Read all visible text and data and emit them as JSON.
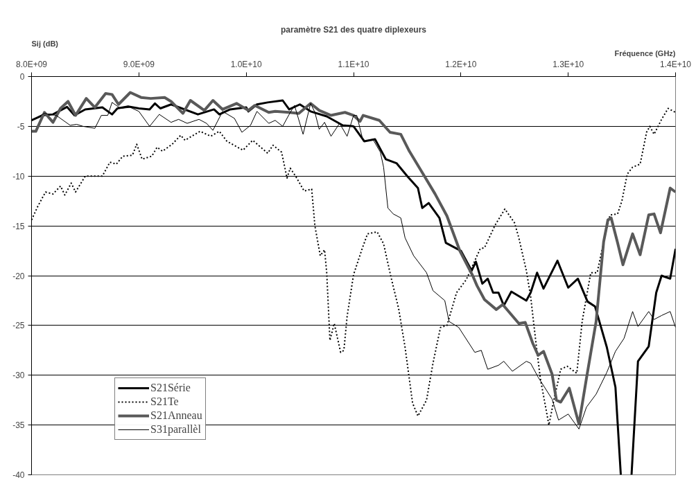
{
  "chart_data": {
    "type": "line",
    "title": "paramètre S21 des quatre diplexeurs",
    "xlabel": "Fréquence (GHz)",
    "ylabel": "Sij (dB)",
    "xlim": [
      8000000000.0,
      14000000000.0
    ],
    "ylim": [
      -40,
      0
    ],
    "xticks": [
      {
        "value": 8000000000.0,
        "label": "8.0E+09"
      },
      {
        "value": 9000000000.0,
        "label": "9.0E+09"
      },
      {
        "value": 10000000000.0,
        "label": "1.0E+10"
      },
      {
        "value": 11000000000.0,
        "label": "1.1E+10"
      },
      {
        "value": 12000000000.0,
        "label": "1.2E+10"
      },
      {
        "value": 13000000000.0,
        "label": "1.3E+10"
      },
      {
        "value": 14000000000.0,
        "label": "1.4E+10"
      }
    ],
    "yticks": [
      0,
      -5,
      -10,
      -15,
      -20,
      -25,
      -30,
      -35,
      -40
    ],
    "grid": "y",
    "legend": "bottom left",
    "marker": "none",
    "series": [
      {
        "name": "S21Série",
        "color": "#000000",
        "line_style": "solid",
        "x": [
          8000000000.0,
          8100000000.0,
          8200000000.0,
          8330000000.0,
          8400000000.0,
          8500000000.0,
          8660000000.0,
          8750000000.0,
          8800000000.0,
          8900000000.0,
          9000000000.0,
          9100000000.0,
          9150000000.0,
          9200000000.0,
          9300000000.0,
          9400000000.0,
          9550000000.0,
          9700000000.0,
          9750000000.0,
          9850000000.0,
          10000000000.0,
          10020000000.0,
          10100000000.0,
          10200000000.0,
          10340000000.0,
          10400000000.0,
          10500000000.0,
          10600000000.0,
          10750000000.0,
          10900000000.0,
          11000000000.0,
          11100000000.0,
          11200000000.0,
          11300000000.0,
          11400000000.0,
          11500000000.0,
          11600000000.0,
          11640000000.0,
          11700000000.0,
          11800000000.0,
          11860000000.0,
          12000000000.0,
          12100000000.0,
          12140000000.0,
          12200000000.0,
          12250000000.0,
          12300000000.0,
          12350000000.0,
          12400000000.0,
          12470000000.0,
          12610000000.0,
          12650000000.0,
          12710000000.0,
          12770000000.0,
          12900000000.0,
          13000000000.0,
          13090000000.0,
          13180000000.0,
          13250000000.0,
          13360000000.0,
          13440000000.0,
          13490000000.0,
          13550000000.0,
          13590000000.0,
          13650000000.0,
          13750000000.0,
          13820000000.0,
          13870000000.0,
          13950000000.0,
          14000000000.0
        ],
        "values": [
          -4.4,
          -3.9,
          -3.8,
          -3.05,
          -3.9,
          -3.3,
          -3.1,
          -3.8,
          -3.2,
          -3.0,
          -3.2,
          -3.3,
          -2.7,
          -3.2,
          -2.8,
          -3.2,
          -3.8,
          -3.3,
          -3.8,
          -3.3,
          -3.1,
          -3.5,
          -2.8,
          -2.6,
          -2.4,
          -3.3,
          -2.8,
          -3.5,
          -4.0,
          -4.9,
          -5.0,
          -6.5,
          -6.3,
          -8.3,
          -8.7,
          -10.0,
          -11.2,
          -13.2,
          -12.7,
          -14.2,
          -16.7,
          -17.5,
          -19.5,
          -18.6,
          -20.8,
          -20.3,
          -21.7,
          -21.7,
          -23.0,
          -21.6,
          -22.5,
          -21.7,
          -19.7,
          -21.3,
          -18.5,
          -21.2,
          -20.3,
          -22.6,
          -23.1,
          -27.2,
          -31.2,
          -40,
          null,
          -40,
          -28.6,
          -27.1,
          -21.7,
          -20.0,
          -20.3,
          -17.3
        ]
      },
      {
        "name": "S21Te",
        "color": "#000000",
        "line_style": "dotted",
        "x": [
          8000000000.0,
          8060000000.0,
          8130000000.0,
          8200000000.0,
          8270000000.0,
          8310000000.0,
          8370000000.0,
          8410000000.0,
          8500000000.0,
          8660000000.0,
          8730000000.0,
          8790000000.0,
          8850000000.0,
          8940000000.0,
          8980000000.0,
          9030000000.0,
          9120000000.0,
          9170000000.0,
          9220000000.0,
          9310000000.0,
          9390000000.0,
          9430000000.0,
          9570000000.0,
          9670000000.0,
          9750000000.0,
          9820000000.0,
          9970000000.0,
          10060000000.0,
          10200000000.0,
          10250000000.0,
          10330000000.0,
          10380000000.0,
          10410000000.0,
          10460000000.0,
          10540000000.0,
          10610000000.0,
          10640000000.0,
          10690000000.0,
          10730000000.0,
          10750000000.0,
          10780000000.0,
          10820000000.0,
          10880000000.0,
          10910000000.0,
          10940000000.0,
          11000000000.0,
          11080000000.0,
          11130000000.0,
          11220000000.0,
          11280000000.0,
          11350000000.0,
          11420000000.0,
          11480000000.0,
          11550000000.0,
          11600000000.0,
          11680000000.0,
          11740000000.0,
          11810000000.0,
          11870000000.0,
          11960000000.0,
          12050000000.0,
          12180000000.0,
          12220000000.0,
          12320000000.0,
          12410000000.0,
          12500000000.0,
          12540000000.0,
          12610000000.0,
          12650000000.0,
          12700000000.0,
          12740000000.0,
          12820000000.0,
          12870000000.0,
          12930000000.0,
          12990000000.0,
          13080000000.0,
          13130000000.0,
          13210000000.0,
          13270000000.0,
          13330000000.0,
          13390000000.0,
          13460000000.0,
          13500000000.0,
          13550000000.0,
          13600000000.0,
          13670000000.0,
          13730000000.0,
          13760000000.0,
          13800000000.0,
          13870000000.0,
          13930000000.0,
          14000000000.0
        ],
        "values": [
          -14.4,
          -13.0,
          -11.6,
          -11.8,
          -11.0,
          -11.9,
          -10.7,
          -11.6,
          -10.0,
          -10.0,
          -8.6,
          -8.8,
          -8.0,
          -7.9,
          -6.8,
          -8.3,
          -8.0,
          -7.1,
          -7.5,
          -6.8,
          -5.9,
          -6.4,
          -5.5,
          -6.0,
          -5.5,
          -6.5,
          -7.4,
          -6.4,
          -7.7,
          -6.9,
          -7.6,
          -10.2,
          -9.2,
          -10.0,
          -11.5,
          -11.3,
          -15.0,
          -18.0,
          -17.4,
          -19.7,
          -26.5,
          -24.8,
          -27.7,
          -27.5,
          -24.1,
          -19.9,
          -17.3,
          -15.8,
          -15.6,
          -16.8,
          -20.2,
          -23.3,
          -27.2,
          -32.8,
          -34.1,
          -32.5,
          -28.8,
          -25.2,
          -25.0,
          -21.7,
          -20.4,
          -17.3,
          -17.2,
          -14.9,
          -13.3,
          -14.7,
          -16.2,
          -19.5,
          -22.1,
          -26.8,
          -30.3,
          -35.0,
          -32.3,
          -29.4,
          -29.1,
          -29.8,
          -24.6,
          -19.7,
          -19.7,
          -16.6,
          -13.9,
          -13.8,
          -12.5,
          -9.8,
          -9.1,
          -8.8,
          -5.6,
          -5.0,
          -5.8,
          -4.3,
          -3.2,
          -3.6
        ]
      },
      {
        "name": "S21Anneau",
        "color": "#595959",
        "line_style": "solid",
        "x": [
          8000000000.0,
          8040000000.0,
          8120000000.0,
          8200000000.0,
          8270000000.0,
          8340000000.0,
          8410000000.0,
          8510000000.0,
          8590000000.0,
          8690000000.0,
          8750000000.0,
          8810000000.0,
          8920000000.0,
          9020000000.0,
          9110000000.0,
          9240000000.0,
          9300000000.0,
          9410000000.0,
          9480000000.0,
          9610000000.0,
          9690000000.0,
          9780000000.0,
          9910000000.0,
          10020000000.0,
          10080000000.0,
          10210000000.0,
          10270000000.0,
          10400000000.0,
          10490000000.0,
          10600000000.0,
          10680000000.0,
          10790000000.0,
          10920000000.0,
          11000000000.0,
          11060000000.0,
          11090000000.0,
          11240000000.0,
          11340000000.0,
          11440000000.0,
          11520000000.0,
          11660000000.0,
          11760000000.0,
          11870000000.0,
          11990000000.0,
          12110000000.0,
          12150000000.0,
          12220000000.0,
          12330000000.0,
          12390000000.0,
          12540000000.0,
          12600000000.0,
          12670000000.0,
          12720000000.0,
          12770000000.0,
          12850000000.0,
          12890000000.0,
          12930000000.0,
          13010000000.0,
          13100000000.0,
          13170000000.0,
          13260000000.0,
          13330000000.0,
          13370000000.0,
          13400000000.0,
          13460000000.0,
          13510000000.0,
          13600000000.0,
          13670000000.0,
          13750000000.0,
          13800000000.0,
          13860000000.0,
          13950000000.0,
          14000000000.0
        ],
        "values": [
          -5.5,
          -5.5,
          -3.6,
          -4.6,
          -3.2,
          -2.5,
          -3.9,
          -2.2,
          -3.1,
          -1.7,
          -1.8,
          -2.8,
          -1.6,
          -2.1,
          -2.2,
          -2.1,
          -2.5,
          -3.7,
          -2.4,
          -3.4,
          -2.4,
          -3.3,
          -2.7,
          -3.4,
          -2.9,
          -3.6,
          -3.5,
          -3.6,
          -3.7,
          -2.7,
          -3.4,
          -3.9,
          -3.6,
          -3.9,
          -4.5,
          -3.9,
          -4.4,
          -5.6,
          -5.8,
          -7.5,
          -10.0,
          -11.8,
          -14.0,
          -17.5,
          -20.0,
          -21.0,
          -22.4,
          -23.4,
          -22.9,
          -24.8,
          -24.7,
          -26.8,
          -28.0,
          -27.6,
          -29.9,
          -32.5,
          -32.7,
          -31.3,
          -34.9,
          -30.3,
          -24.6,
          -16.6,
          -14.4,
          -14.2,
          -16.7,
          -18.9,
          -15.8,
          -17.9,
          -13.9,
          -13.8,
          -15.7,
          -11.2,
          -11.6
        ]
      },
      {
        "name": "S31parallèl",
        "color": "#000000",
        "line_style": "solid",
        "x": [
          8000000000.0,
          8120000000.0,
          8230000000.0,
          8360000000.0,
          8420000000.0,
          8480000000.0,
          8590000000.0,
          8650000000.0,
          8710000000.0,
          8750000000.0,
          8830000000.0,
          8920000000.0,
          9000000000.0,
          9100000000.0,
          9190000000.0,
          9300000000.0,
          9370000000.0,
          9450000000.0,
          9560000000.0,
          9630000000.0,
          9690000000.0,
          9780000000.0,
          9890000000.0,
          9960000000.0,
          10040000000.0,
          10100000000.0,
          10210000000.0,
          10270000000.0,
          10340000000.0,
          10400000000.0,
          10450000000.0,
          10530000000.0,
          10600000000.0,
          10640000000.0,
          10680000000.0,
          10730000000.0,
          10790000000.0,
          10870000000.0,
          10940000000.0,
          11000000000.0,
          11030000000.0,
          11090000000.0,
          11180000000.0,
          11250000000.0,
          11280000000.0,
          11320000000.0,
          11370000000.0,
          11440000000.0,
          11480000000.0,
          11560000000.0,
          11680000000.0,
          11740000000.0,
          11850000000.0,
          11890000000.0,
          11980000000.0,
          12130000000.0,
          12190000000.0,
          12250000000.0,
          12350000000.0,
          12400000000.0,
          12480000000.0,
          12610000000.0,
          12650000000.0,
          12720000000.0,
          12850000000.0,
          12910000000.0,
          13000000000.0,
          13100000000.0,
          13170000000.0,
          13260000000.0,
          13360000000.0,
          13440000000.0,
          13520000000.0,
          13600000000.0,
          13650000000.0,
          13750000000.0,
          13800000000.0,
          13870000000.0,
          13950000000.0,
          14000000000.0
        ],
        "values": [
          -4.4,
          -3.7,
          -3.9,
          -4.9,
          -4.8,
          -5.0,
          -5.2,
          -3.9,
          -3.9,
          -2.6,
          -3.2,
          -3.1,
          -3.5,
          -5.0,
          -3.8,
          -4.6,
          -4.3,
          -4.7,
          -4.3,
          -4.7,
          -5.4,
          -3.5,
          -4.2,
          -5.6,
          -4.9,
          -3.5,
          -4.7,
          -4.4,
          -5.0,
          -3.8,
          -2.9,
          -5.8,
          -2.7,
          -3.6,
          -5.3,
          -4.6,
          -6.0,
          -4.7,
          -6.0,
          -3.9,
          -3.9,
          -6.5,
          -6.3,
          -7.6,
          -9.1,
          -13.2,
          -13.8,
          -14.2,
          -16.2,
          -18.0,
          -19.7,
          -21.5,
          -22.5,
          -24.6,
          -25.2,
          -27.7,
          -27.5,
          -29.4,
          -29.0,
          -28.6,
          -29.6,
          -28.6,
          -28.8,
          -30.2,
          -32.4,
          -34.5,
          -33.9,
          -35.4,
          -33.2,
          -31.9,
          -29.7,
          -27.6,
          -26.3,
          -23.6,
          -25.1,
          -23.6,
          -24.4,
          -24.0,
          -23.6,
          -25.2
        ]
      }
    ]
  }
}
